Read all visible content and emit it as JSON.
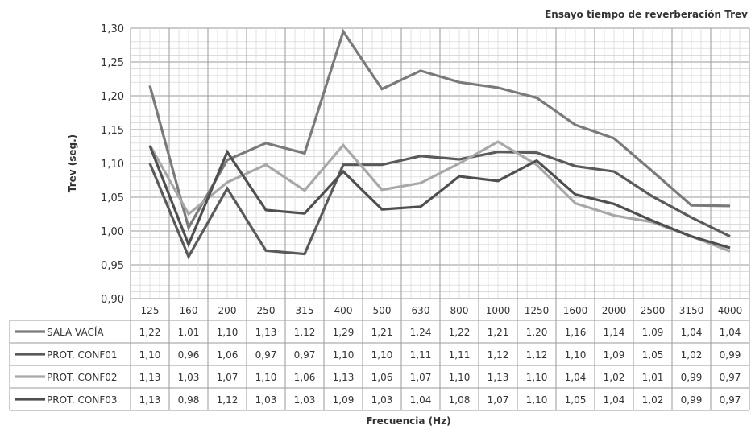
{
  "chart_data": {
    "type": "line",
    "title": "Ensayo tiempo de reverberación Trev",
    "xlabel": "Frecuencia (Hz)",
    "ylabel": "Trev (seg.)",
    "categories": [
      "125",
      "160",
      "200",
      "250",
      "315",
      "400",
      "500",
      "630",
      "800",
      "1000",
      "1250",
      "1600",
      "2000",
      "2500",
      "3150",
      "4000"
    ],
    "ylim": [
      0.9,
      1.3
    ],
    "yticks": [
      "0,90",
      "0,95",
      "1,00",
      "1,05",
      "1,10",
      "1,15",
      "1,20",
      "1,25",
      "1,30"
    ],
    "grid": true,
    "series": [
      {
        "name": "SALA VACÍA",
        "color": "#7a7a7a",
        "values": [
          1.215,
          1.005,
          1.105,
          1.13,
          1.115,
          1.295,
          1.21,
          1.237,
          1.22,
          1.212,
          1.197,
          1.157,
          1.137,
          1.088,
          1.038,
          1.037
        ],
        "labels": [
          "1,22",
          "1,01",
          "1,10",
          "1,13",
          "1,12",
          "1,29",
          "1,21",
          "1,24",
          "1,22",
          "1,21",
          "1,20",
          "1,16",
          "1,14",
          "1,09",
          "1,04",
          "1,04"
        ]
      },
      {
        "name": "PROT. CONF01",
        "color": "#5a5a5a",
        "values": [
          1.1,
          0.962,
          1.063,
          0.971,
          0.966,
          1.098,
          1.098,
          1.111,
          1.106,
          1.117,
          1.116,
          1.096,
          1.088,
          1.051,
          1.02,
          0.992
        ],
        "labels": [
          "1,10",
          "0,96",
          "1,06",
          "0,97",
          "0,97",
          "1,10",
          "1,10",
          "1,11",
          "1,11",
          "1,12",
          "1,12",
          "1,10",
          "1,09",
          "1,05",
          "1,02",
          "0,99"
        ]
      },
      {
        "name": "PROT. CONF02",
        "color": "#a8a8a8",
        "values": [
          1.127,
          1.025,
          1.072,
          1.098,
          1.06,
          1.127,
          1.061,
          1.071,
          1.1,
          1.132,
          1.098,
          1.041,
          1.023,
          1.013,
          0.992,
          0.97
        ],
        "labels": [
          "1,13",
          "1,03",
          "1,07",
          "1,10",
          "1,06",
          "1,13",
          "1,06",
          "1,07",
          "1,10",
          "1,13",
          "1,10",
          "1,04",
          "1,02",
          "1,01",
          "0,99",
          "0,97"
        ]
      },
      {
        "name": "PROT. CONF03",
        "color": "#4f4f4f",
        "values": [
          1.126,
          0.98,
          1.117,
          1.031,
          1.026,
          1.088,
          1.032,
          1.036,
          1.081,
          1.074,
          1.104,
          1.054,
          1.04,
          1.015,
          0.992,
          0.975
        ],
        "labels": [
          "1,13",
          "0,98",
          "1,12",
          "1,03",
          "1,03",
          "1,09",
          "1,03",
          "1,04",
          "1,08",
          "1,07",
          "1,10",
          "1,05",
          "1,04",
          "1,02",
          "0,99",
          "0,97"
        ]
      }
    ]
  }
}
